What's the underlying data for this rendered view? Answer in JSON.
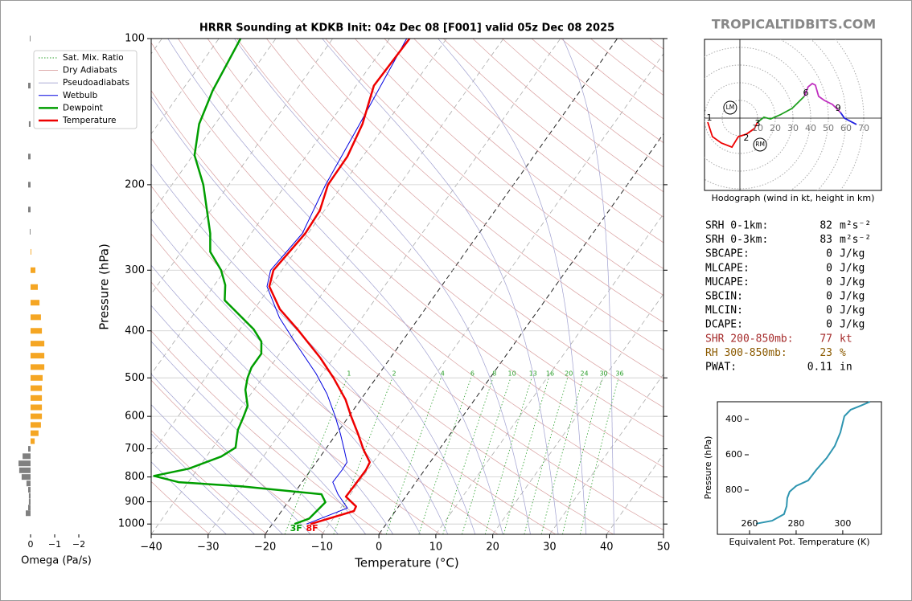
{
  "site": "TROPICALTIDBITS.COM",
  "chart_data": [
    {
      "type": "skewt",
      "title": "HRRR Sounding at KDKB Init: 04z Dec 08 [F001] valid 05z Dec 08 2025",
      "xlabel": "Temperature (°C)",
      "ylabel": "Pressure (hPa)",
      "log_y": true,
      "xlim": [
        -40,
        50
      ],
      "ylim": [
        1050,
        100
      ],
      "xticks": [
        {
          "value": -40,
          "label": "−40"
        },
        {
          "value": -30,
          "label": "−30"
        },
        {
          "value": -20,
          "label": "−20"
        },
        {
          "value": -10,
          "label": "−10"
        },
        0,
        10,
        20,
        30,
        40,
        50
      ],
      "yticks": [
        100,
        200,
        300,
        400,
        500,
        600,
        700,
        800,
        900,
        1000
      ],
      "reference_lines": [
        {
          "name": "Sat. Mix. Ratio",
          "color": "#2ca02c",
          "linestyle": "dotted",
          "values": [
            1,
            2,
            4,
            6,
            8,
            10,
            13,
            16,
            20,
            24,
            30,
            36
          ]
        },
        {
          "name": "Dry Adiabats",
          "color": "#d9a0a0",
          "linestyle": "solid"
        },
        {
          "name": "Pseudoadiabats",
          "color": "#a0a0d0",
          "linestyle": "solid"
        }
      ],
      "series": [
        {
          "name": "Wetbulb",
          "color": "#0000e0",
          "linewidth": 1,
          "pressure": [
            1000,
            927,
            868,
            820,
            774,
            746,
            704,
            652,
            600,
            540,
            490,
            429,
            376,
            324,
            300,
            252,
            200,
            150,
            100
          ],
          "values": [
            -14.0,
            -8.8,
            -12.2,
            -14.6,
            -14.5,
            -14.6,
            -16.6,
            -19.3,
            -22.4,
            -26.6,
            -31.1,
            -37.9,
            -44.5,
            -50.6,
            -52.0,
            -51.0,
            -53.0,
            -54.6,
            -57.0
          ]
        },
        {
          "name": "Dewpoint",
          "color": "#009e00",
          "linewidth": 2.5,
          "surface_label": "3F",
          "pressure": [
            1000,
            974,
            902,
            868,
            836,
            820,
            796,
            769,
            726,
            696,
            640,
            604,
            571,
            529,
            500,
            476,
            446,
            421,
            397,
            346,
            322,
            300,
            275,
            252,
            200,
            174,
            150,
            128,
            100
          ],
          "values": [
            -16.1,
            -14.2,
            -13.4,
            -15.1,
            -30.2,
            -41.7,
            -46.8,
            -41.6,
            -37.4,
            -36.0,
            -37.8,
            -38.4,
            -39.1,
            -41.5,
            -42.6,
            -43.2,
            -43.2,
            -44.7,
            -47.6,
            -56.3,
            -58.1,
            -60.7,
            -64.9,
            -67.2,
            -74.5,
            -79.7,
            -82.8,
            -84.6,
            -86.2
          ]
        },
        {
          "name": "Temperature",
          "color": "#ee0000",
          "linewidth": 2.5,
          "surface_label": "8F",
          "pressure": [
            1000,
            940,
            920,
            878,
            836,
            774,
            746,
            704,
            652,
            600,
            554,
            500,
            454,
            397,
            361,
            324,
            300,
            252,
            226,
            200,
            175,
            150,
            125,
            100
          ],
          "values": [
            -13.3,
            -7.3,
            -7.5,
            -10.5,
            -10.4,
            -10.3,
            -10.6,
            -13.2,
            -16.2,
            -19.6,
            -22.7,
            -27.5,
            -32.4,
            -39.9,
            -45.5,
            -50.2,
            -51.5,
            -50.5,
            -50.8,
            -52.6,
            -52.7,
            -54.1,
            -56.9,
            -56.5
          ]
        }
      ]
    },
    {
      "type": "hbar",
      "xlabel": "Omega (Pa/s)",
      "xlim": [
        0.5,
        -2
      ],
      "xticks": [
        0,
        {
          "value": -1,
          "label": "−1"
        },
        {
          "value": -2,
          "label": "−2"
        }
      ],
      "negative_color": "#f5a623",
      "positive_color": "#808080",
      "pressure": [
        100,
        125,
        150,
        175,
        200,
        225,
        250,
        275,
        300,
        325,
        350,
        375,
        400,
        425,
        450,
        475,
        500,
        525,
        550,
        575,
        600,
        625,
        650,
        675,
        700,
        725,
        750,
        775,
        800,
        825,
        850,
        875,
        900,
        925,
        950
      ],
      "values": [
        0.03,
        0.1,
        0.07,
        0.1,
        0.1,
        0.1,
        0.03,
        -0.03,
        -0.2,
        -0.3,
        -0.37,
        -0.43,
        -0.47,
        -0.57,
        -0.57,
        -0.57,
        -0.5,
        -0.47,
        -0.47,
        -0.47,
        -0.47,
        -0.43,
        -0.33,
        -0.17,
        0.1,
        0.33,
        0.5,
        0.47,
        0.37,
        0.17,
        0.1,
        0.07,
        0.07,
        0.1,
        0.2
      ]
    },
    {
      "type": "hodograph",
      "caption": "Hodograph (wind in kt, height in km)",
      "ulim": [
        -20,
        80
      ],
      "vlim": [
        -40.9,
        44.5
      ],
      "rings": [
        10,
        20,
        30,
        40,
        50,
        60,
        70
      ],
      "series": [
        {
          "color": "#ee0000",
          "u": [
            -18.2,
            -15.5,
            -10.5,
            -4.5,
            -0.9,
            3.6,
            8.2,
            10.0
          ],
          "v": [
            -2.3,
            -10.5,
            -14.1,
            -16.4,
            -10.5,
            -9.1,
            -5.9,
            -2.3
          ]
        },
        {
          "color": "#1fa01f",
          "u": [
            10.0,
            13.6,
            17.3,
            22.7,
            29.5,
            36.4
          ],
          "v": [
            -2.3,
            0.5,
            -0.5,
            1.8,
            5.5,
            12.3
          ]
        },
        {
          "color": "#c030c0",
          "u": [
            36.4,
            38.6,
            40.9,
            42.7,
            44.5,
            47.7,
            52.3,
            56.8
          ],
          "v": [
            12.3,
            17.7,
            19.5,
            18.6,
            12.3,
            10.0,
            7.7,
            3.2
          ]
        },
        {
          "color": "#2020e0",
          "u": [
            56.8,
            59.1,
            65.9
          ],
          "v": [
            3.2,
            0.0,
            -3.6
          ]
        }
      ],
      "height_marks": [
        {
          "km": 1,
          "u": -17.3,
          "v": 0
        },
        {
          "km": 2,
          "u": 3.6,
          "v": -11.4
        },
        {
          "km": 3,
          "u": 10.0,
          "v": -3.2
        },
        {
          "km": 6,
          "u": 37.3,
          "v": 14.1
        },
        {
          "km": 9,
          "u": 55.5,
          "v": 5.5
        }
      ],
      "storm_motions": [
        {
          "label": "LM",
          "u": -5.5,
          "v": 5.9
        },
        {
          "label": "RM",
          "u": 11.4,
          "v": -15.0
        }
      ]
    },
    {
      "type": "line",
      "xlabel": "Equivalent Pot. Temperature (K)",
      "ylabel": "Pressure (hPa)",
      "color": "#2e95b0",
      "xlim": [
        246.2,
        316.6
      ],
      "ylim": [
        1050,
        300
      ],
      "xticks": [
        260,
        280,
        300
      ],
      "yticks": [
        400,
        600,
        800
      ],
      "pressure": [
        990,
        973,
        936,
        891,
        845,
        809,
        777,
        745,
        686,
        618,
        550,
        473,
        382,
        345,
        323,
        300
      ],
      "values": [
        262.8,
        269.7,
        274.8,
        275.9,
        276.2,
        277.2,
        280.0,
        285.2,
        288.6,
        293.1,
        296.6,
        299.0,
        300.7,
        303.4,
        307.6,
        311.7
      ]
    }
  ],
  "stats": {
    "rows": [
      {
        "label": "SRH 0-1km:",
        "value": 82,
        "unit": "m²s⁻²"
      },
      {
        "label": "SRH 0-3km:",
        "value": 83,
        "unit": "m²s⁻²"
      },
      {
        "label": "SBCAPE:",
        "value": 0,
        "unit": "J/kg"
      },
      {
        "label": "MLCAPE:",
        "value": 0,
        "unit": "J/kg"
      },
      {
        "label": "MUCAPE:",
        "value": 0,
        "unit": "J/kg"
      },
      {
        "label": "SBCIN:",
        "value": 0,
        "unit": "J/kg"
      },
      {
        "label": "MLCIN:",
        "value": 0,
        "unit": "J/kg"
      },
      {
        "label": "DCAPE:",
        "value": 0,
        "unit": "J/kg"
      },
      {
        "label": "SHR 200-850mb:",
        "value": 77,
        "unit": "kt",
        "color": "#a52a2a"
      },
      {
        "label": "RH 300-850mb:",
        "value": 23,
        "unit": "%",
        "color": "#8b5a00"
      },
      {
        "label": "PWAT:",
        "value": 0.11,
        "unit": "in"
      }
    ]
  }
}
